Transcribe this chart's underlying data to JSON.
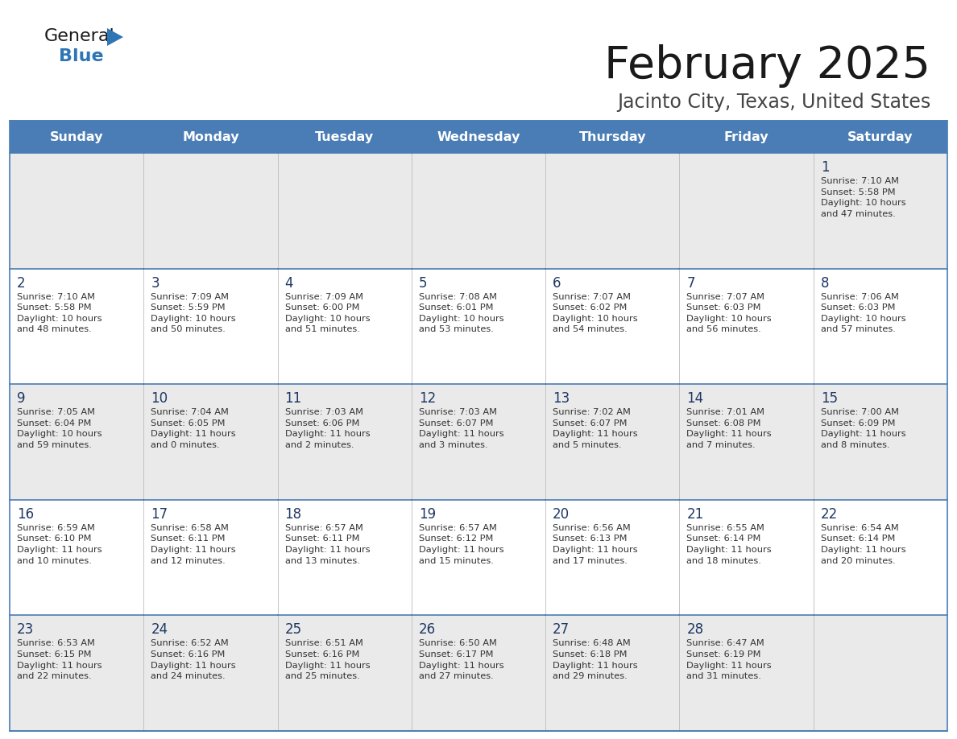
{
  "title": "February 2025",
  "subtitle": "Jacinto City, Texas, United States",
  "header_bg": "#4A7DB5",
  "header_text_color": "#FFFFFF",
  "days_of_week": [
    "Sunday",
    "Monday",
    "Tuesday",
    "Wednesday",
    "Thursday",
    "Friday",
    "Saturday"
  ],
  "cell_bg_odd": "#EAEAEA",
  "cell_bg_even": "#FFFFFF",
  "day_number_color": "#1F3864",
  "text_color": "#333333",
  "border_color": "#4A7DB5",
  "grid_line_color": "#BBBBBB",
  "logo_general_color": "#1A1A1A",
  "logo_blue_color": "#2E75B6",
  "logo_triangle_color": "#2E75B6",
  "title_color": "#1A1A1A",
  "subtitle_color": "#444444",
  "weeks": [
    [
      {
        "day": null,
        "info": null
      },
      {
        "day": null,
        "info": null
      },
      {
        "day": null,
        "info": null
      },
      {
        "day": null,
        "info": null
      },
      {
        "day": null,
        "info": null
      },
      {
        "day": null,
        "info": null
      },
      {
        "day": 1,
        "info": "Sunrise: 7:10 AM\nSunset: 5:58 PM\nDaylight: 10 hours\nand 47 minutes."
      }
    ],
    [
      {
        "day": 2,
        "info": "Sunrise: 7:10 AM\nSunset: 5:58 PM\nDaylight: 10 hours\nand 48 minutes."
      },
      {
        "day": 3,
        "info": "Sunrise: 7:09 AM\nSunset: 5:59 PM\nDaylight: 10 hours\nand 50 minutes."
      },
      {
        "day": 4,
        "info": "Sunrise: 7:09 AM\nSunset: 6:00 PM\nDaylight: 10 hours\nand 51 minutes."
      },
      {
        "day": 5,
        "info": "Sunrise: 7:08 AM\nSunset: 6:01 PM\nDaylight: 10 hours\nand 53 minutes."
      },
      {
        "day": 6,
        "info": "Sunrise: 7:07 AM\nSunset: 6:02 PM\nDaylight: 10 hours\nand 54 minutes."
      },
      {
        "day": 7,
        "info": "Sunrise: 7:07 AM\nSunset: 6:03 PM\nDaylight: 10 hours\nand 56 minutes."
      },
      {
        "day": 8,
        "info": "Sunrise: 7:06 AM\nSunset: 6:03 PM\nDaylight: 10 hours\nand 57 minutes."
      }
    ],
    [
      {
        "day": 9,
        "info": "Sunrise: 7:05 AM\nSunset: 6:04 PM\nDaylight: 10 hours\nand 59 minutes."
      },
      {
        "day": 10,
        "info": "Sunrise: 7:04 AM\nSunset: 6:05 PM\nDaylight: 11 hours\nand 0 minutes."
      },
      {
        "day": 11,
        "info": "Sunrise: 7:03 AM\nSunset: 6:06 PM\nDaylight: 11 hours\nand 2 minutes."
      },
      {
        "day": 12,
        "info": "Sunrise: 7:03 AM\nSunset: 6:07 PM\nDaylight: 11 hours\nand 3 minutes."
      },
      {
        "day": 13,
        "info": "Sunrise: 7:02 AM\nSunset: 6:07 PM\nDaylight: 11 hours\nand 5 minutes."
      },
      {
        "day": 14,
        "info": "Sunrise: 7:01 AM\nSunset: 6:08 PM\nDaylight: 11 hours\nand 7 minutes."
      },
      {
        "day": 15,
        "info": "Sunrise: 7:00 AM\nSunset: 6:09 PM\nDaylight: 11 hours\nand 8 minutes."
      }
    ],
    [
      {
        "day": 16,
        "info": "Sunrise: 6:59 AM\nSunset: 6:10 PM\nDaylight: 11 hours\nand 10 minutes."
      },
      {
        "day": 17,
        "info": "Sunrise: 6:58 AM\nSunset: 6:11 PM\nDaylight: 11 hours\nand 12 minutes."
      },
      {
        "day": 18,
        "info": "Sunrise: 6:57 AM\nSunset: 6:11 PM\nDaylight: 11 hours\nand 13 minutes."
      },
      {
        "day": 19,
        "info": "Sunrise: 6:57 AM\nSunset: 6:12 PM\nDaylight: 11 hours\nand 15 minutes."
      },
      {
        "day": 20,
        "info": "Sunrise: 6:56 AM\nSunset: 6:13 PM\nDaylight: 11 hours\nand 17 minutes."
      },
      {
        "day": 21,
        "info": "Sunrise: 6:55 AM\nSunset: 6:14 PM\nDaylight: 11 hours\nand 18 minutes."
      },
      {
        "day": 22,
        "info": "Sunrise: 6:54 AM\nSunset: 6:14 PM\nDaylight: 11 hours\nand 20 minutes."
      }
    ],
    [
      {
        "day": 23,
        "info": "Sunrise: 6:53 AM\nSunset: 6:15 PM\nDaylight: 11 hours\nand 22 minutes."
      },
      {
        "day": 24,
        "info": "Sunrise: 6:52 AM\nSunset: 6:16 PM\nDaylight: 11 hours\nand 24 minutes."
      },
      {
        "day": 25,
        "info": "Sunrise: 6:51 AM\nSunset: 6:16 PM\nDaylight: 11 hours\nand 25 minutes."
      },
      {
        "day": 26,
        "info": "Sunrise: 6:50 AM\nSunset: 6:17 PM\nDaylight: 11 hours\nand 27 minutes."
      },
      {
        "day": 27,
        "info": "Sunrise: 6:48 AM\nSunset: 6:18 PM\nDaylight: 11 hours\nand 29 minutes."
      },
      {
        "day": 28,
        "info": "Sunrise: 6:47 AM\nSunset: 6:19 PM\nDaylight: 11 hours\nand 31 minutes."
      },
      {
        "day": null,
        "info": null
      }
    ]
  ]
}
